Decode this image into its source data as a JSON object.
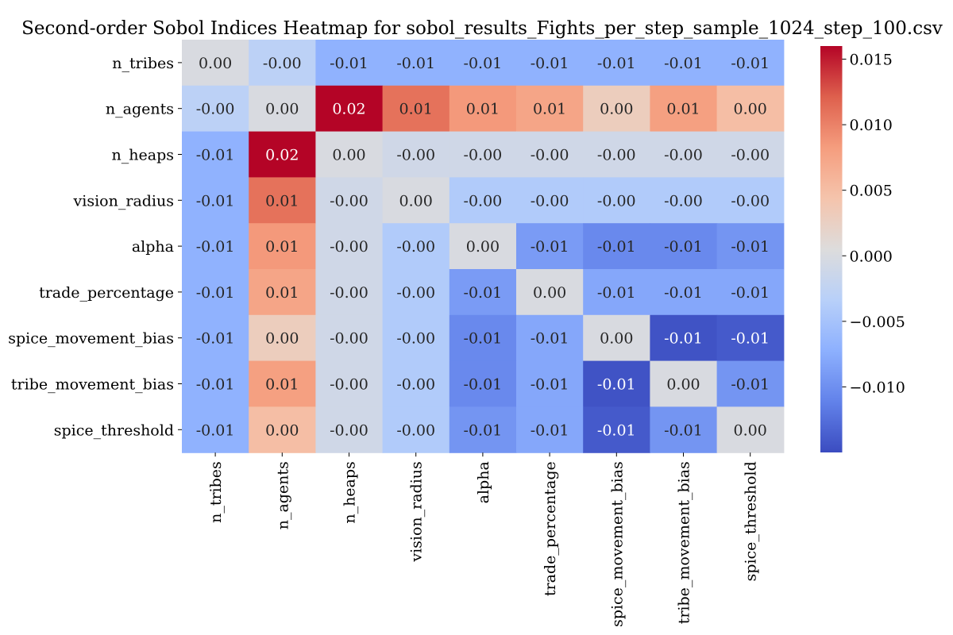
{
  "chart_data": {
    "type": "heatmap",
    "title": "Second-order Sobol Indices Heatmap for sobol_results_Fights_per_step_sample_1024_step_100.csv",
    "row_labels": [
      "n_tribes",
      "n_agents",
      "n_heaps",
      "vision_radius",
      "alpha",
      "trade_percentage",
      "spice_movement_bias",
      "tribe_movement_bias",
      "spice_threshold"
    ],
    "col_labels": [
      "n_tribes",
      "n_agents",
      "n_heaps",
      "vision_radius",
      "alpha",
      "trade_percentage",
      "spice_movement_bias",
      "tribe_movement_bias",
      "spice_threshold"
    ],
    "values": [
      [
        0.0,
        -0.003,
        -0.007,
        -0.007,
        -0.007,
        -0.007,
        -0.007,
        -0.007,
        -0.007
      ],
      [
        -0.003,
        0.0,
        0.016,
        0.011,
        0.0085,
        0.0075,
        0.003,
        0.008,
        0.005
      ],
      [
        -0.007,
        0.016,
        0.0,
        -0.001,
        -0.001,
        -0.001,
        -0.001,
        -0.001,
        -0.001
      ],
      [
        -0.007,
        0.011,
        -0.001,
        0.0,
        -0.004,
        -0.004,
        -0.004,
        -0.004,
        -0.004
      ],
      [
        -0.007,
        0.0085,
        -0.001,
        -0.004,
        0.0,
        -0.009,
        -0.0105,
        -0.0105,
        -0.0095
      ],
      [
        -0.007,
        0.0075,
        -0.001,
        -0.004,
        -0.009,
        0.0,
        -0.008,
        -0.008,
        -0.008
      ],
      [
        -0.007,
        0.003,
        -0.001,
        -0.004,
        -0.0105,
        -0.008,
        0.0,
        -0.0145,
        -0.014
      ],
      [
        -0.007,
        0.008,
        -0.001,
        -0.004,
        -0.0105,
        -0.008,
        -0.0145,
        0.0,
        -0.0095
      ],
      [
        -0.007,
        0.005,
        -0.001,
        -0.004,
        -0.0095,
        -0.008,
        -0.014,
        -0.0095,
        0.0
      ]
    ],
    "cell_labels": [
      [
        "0.00",
        "-0.00",
        "-0.01",
        "-0.01",
        "-0.01",
        "-0.01",
        "-0.01",
        "-0.01",
        "-0.01"
      ],
      [
        "-0.00",
        "0.00",
        "0.02",
        "0.01",
        "0.01",
        "0.01",
        "0.00",
        "0.01",
        "0.00"
      ],
      [
        "-0.01",
        "0.02",
        "0.00",
        "-0.00",
        "-0.00",
        "-0.00",
        "-0.00",
        "-0.00",
        "-0.00"
      ],
      [
        "-0.01",
        "0.01",
        "-0.00",
        "0.00",
        "-0.00",
        "-0.00",
        "-0.00",
        "-0.00",
        "-0.00"
      ],
      [
        "-0.01",
        "0.01",
        "-0.00",
        "-0.00",
        "0.00",
        "-0.01",
        "-0.01",
        "-0.01",
        "-0.01"
      ],
      [
        "-0.01",
        "0.01",
        "-0.00",
        "-0.00",
        "-0.01",
        "0.00",
        "-0.01",
        "-0.01",
        "-0.01"
      ],
      [
        "-0.01",
        "0.00",
        "-0.00",
        "-0.00",
        "-0.01",
        "-0.01",
        "0.00",
        "-0.01",
        "-0.01"
      ],
      [
        "-0.01",
        "0.01",
        "-0.00",
        "-0.00",
        "-0.01",
        "-0.01",
        "-0.01",
        "0.00",
        "-0.01"
      ],
      [
        "-0.01",
        "0.00",
        "-0.00",
        "-0.00",
        "-0.01",
        "-0.01",
        "-0.01",
        "-0.01",
        "0.00"
      ]
    ],
    "colormap": "coolwarm",
    "vmin": -0.015,
    "vmax": 0.016,
    "colorbar_ticks": [
      0.015,
      0.01,
      0.005,
      0.0,
      -0.005,
      -0.01
    ],
    "colorbar_tick_labels": [
      "0.015",
      "0.010",
      "0.005",
      "0.000",
      "−0.005",
      "−0.010"
    ],
    "colormap_stops": [
      "#3b4cc0",
      "#6282ea",
      "#8db0fe",
      "#b8d0f9",
      "#dddcdc",
      "#f5c4ac",
      "#f59d7e",
      "#de604d",
      "#b40426"
    ],
    "xlabel": "",
    "ylabel": "",
    "grid": false
  }
}
